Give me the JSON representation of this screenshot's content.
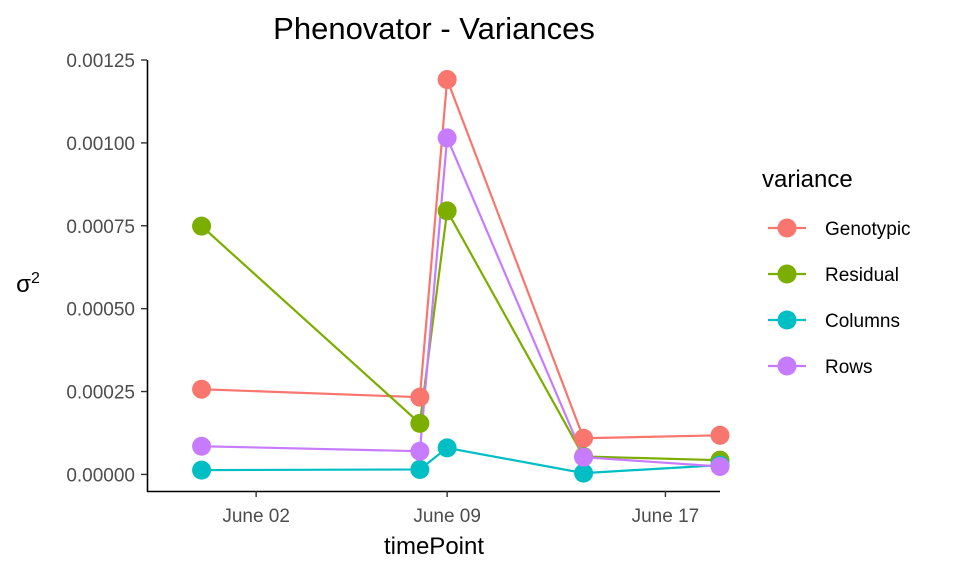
{
  "chart_data": {
    "type": "line",
    "title": "Phenovator - Variances",
    "xlabel": "timePoint",
    "ylabel_base": "σ",
    "ylabel_sup": "2",
    "x_ticks": [
      {
        "date": "2018-06-02",
        "label": "June 02"
      },
      {
        "date": "2018-06-09",
        "label": "June 09"
      },
      {
        "date": "2018-06-17",
        "label": "June 17"
      }
    ],
    "x_range": [
      "2018-05-29",
      "2018-06-19"
    ],
    "y_ticks": [
      "0.00000",
      "0.00025",
      "0.00050",
      "0.00075",
      "0.00100",
      "0.00125"
    ],
    "ylim": [
      -5e-05,
      0.00125
    ],
    "x": [
      "2018-05-31",
      "2018-06-08",
      "2018-06-09",
      "2018-06-14",
      "2018-06-19"
    ],
    "legend_title": "variance",
    "legend_position": "right",
    "grid": false,
    "series": [
      {
        "name": "Genotypic",
        "color": "#F8766D",
        "values": [
          0.000257,
          0.000233,
          0.001191,
          0.000109,
          0.000118
        ]
      },
      {
        "name": "Residual",
        "color": "#7CAE00",
        "values": [
          0.000749,
          0.000154,
          0.000795,
          5.4e-05,
          4.3e-05
        ]
      },
      {
        "name": "Columns",
        "color": "#00BFC4",
        "values": [
          1.3e-05,
          1.5e-05,
          8e-05,
          4e-06,
          2.8e-05
        ]
      },
      {
        "name": "Rows",
        "color": "#C77CFF",
        "values": [
          8.5e-05,
          7e-05,
          0.001015,
          5.2e-05,
          2.4e-05
        ]
      }
    ]
  }
}
